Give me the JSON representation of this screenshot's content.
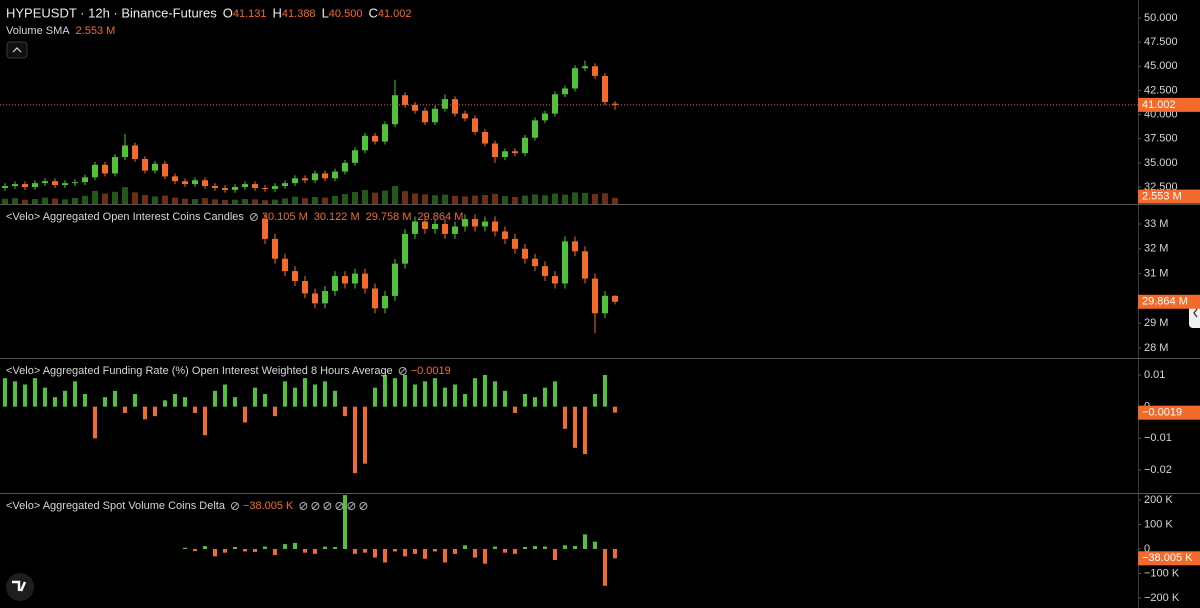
{
  "chart_data": [
    {
      "type": "candlestick",
      "title": "HYPEUSDT · 12h · Binance-Futures",
      "legend_keys": [
        "O",
        "H",
        "L",
        "C"
      ],
      "legend_values": [
        41.131,
        41.388,
        40.5,
        41.002
      ],
      "legend_value_labels": [
        "41.131",
        "41.388",
        "40.500",
        "41.002"
      ],
      "volume_sma_name": "Volume SMA",
      "volume_sma": 2.553,
      "volume_sma_label": "2.553 M",
      "last_value": 41.002,
      "last_value_label": "41.002",
      "ylim": [
        30.74,
        51.86
      ],
      "yticks": [
        {
          "value": 32.5,
          "label": "32.500"
        },
        {
          "value": 35,
          "label": "35.000"
        },
        {
          "value": 37.5,
          "label": "37.500"
        },
        {
          "value": 40,
          "label": "40.000"
        },
        {
          "value": 42.5,
          "label": "42.500"
        },
        {
          "value": 45,
          "label": "45.000"
        },
        {
          "value": 47.5,
          "label": "47.500"
        },
        {
          "value": 50,
          "label": "50.000"
        }
      ],
      "volume_ylim": [
        0,
        70
      ],
      "up_color": "#4fc13a",
      "down_color": "#f26b2d",
      "open": [
        32.4,
        32.6,
        32.8,
        32.5,
        32.9,
        33.1,
        32.7,
        32.9,
        33.0,
        33.5,
        34.8,
        33.9,
        35.6,
        36.8,
        35.4,
        34.2,
        34.9,
        33.6,
        33.1,
        32.8,
        33.2,
        32.6,
        32.4,
        32.2,
        32.5,
        32.8,
        32.4,
        32.3,
        32.6,
        32.9,
        33.4,
        33.2,
        33.9,
        33.4,
        34.1,
        35.0,
        36.3,
        37.8,
        37.2,
        39.0,
        42.0,
        41.0,
        40.4,
        39.2,
        40.6,
        41.6,
        40.1,
        39.6,
        38.2,
        37.0,
        35.6,
        36.2,
        36.0,
        37.6,
        39.4,
        40.1,
        42.1,
        42.7,
        44.8,
        45.0,
        44.0,
        41.131
      ],
      "high": [
        32.9,
        33.1,
        33.1,
        33.2,
        33.4,
        33.4,
        33.2,
        33.3,
        33.8,
        35.1,
        35.1,
        35.9,
        38.0,
        37.1,
        35.7,
        35.2,
        35.2,
        33.9,
        33.4,
        33.5,
        33.5,
        32.9,
        32.7,
        32.8,
        33.1,
        33.1,
        32.7,
        32.9,
        33.2,
        33.7,
        33.7,
        34.2,
        34.2,
        34.4,
        35.3,
        36.6,
        38.1,
        38.1,
        39.3,
        43.6,
        42.3,
        41.3,
        40.7,
        40.9,
        42.1,
        41.9,
        40.4,
        39.9,
        38.5,
        37.3,
        36.5,
        36.5,
        37.9,
        39.7,
        40.4,
        42.4,
        43.0,
        45.1,
        45.6,
        45.3,
        44.3,
        41.388
      ],
      "low": [
        32.1,
        32.3,
        32.2,
        32.2,
        32.6,
        32.4,
        32.4,
        32.6,
        32.7,
        33.2,
        33.6,
        33.6,
        35.3,
        35.1,
        33.9,
        33.9,
        33.3,
        32.8,
        32.5,
        32.5,
        32.3,
        32.1,
        31.9,
        31.9,
        32.2,
        32.1,
        32.0,
        32.0,
        32.3,
        32.6,
        32.9,
        32.9,
        33.1,
        33.1,
        33.8,
        34.7,
        36.0,
        36.9,
        36.9,
        38.7,
        40.7,
        40.1,
        38.9,
        38.9,
        40.3,
        39.8,
        39.3,
        37.9,
        36.7,
        35.0,
        35.3,
        35.7,
        35.7,
        37.3,
        39.1,
        39.8,
        41.8,
        42.4,
        44.5,
        43.7,
        41.0,
        40.5
      ],
      "close": [
        32.6,
        32.8,
        32.5,
        32.9,
        33.1,
        32.7,
        32.9,
        33.0,
        33.5,
        34.8,
        33.9,
        35.6,
        36.8,
        35.4,
        34.2,
        34.9,
        33.6,
        33.1,
        32.8,
        33.2,
        32.6,
        32.4,
        32.2,
        32.5,
        32.8,
        32.4,
        32.3,
        32.6,
        32.9,
        33.4,
        33.2,
        33.9,
        33.4,
        34.1,
        35.0,
        36.3,
        37.8,
        37.2,
        39.0,
        42.0,
        41.0,
        40.4,
        39.2,
        40.6,
        41.6,
        40.1,
        39.6,
        38.2,
        37.0,
        35.6,
        36.2,
        36.0,
        37.6,
        39.4,
        40.1,
        42.1,
        42.7,
        44.8,
        45.0,
        44.0,
        41.3,
        41.002
      ],
      "volume": [
        1.8,
        2.0,
        1.5,
        1.7,
        2.2,
        1.9,
        1.6,
        2.1,
        2.8,
        4.5,
        3.6,
        4.2,
        5.8,
        4.0,
        3.1,
        2.6,
        2.9,
        2.2,
        1.8,
        1.7,
        2.0,
        1.6,
        1.4,
        1.5,
        1.7,
        1.6,
        1.3,
        1.5,
        1.9,
        2.5,
        2.0,
        2.4,
        2.2,
        2.8,
        3.4,
        4.1,
        4.8,
        3.9,
        4.6,
        6.2,
        4.4,
        3.6,
        3.3,
        3.0,
        3.2,
        2.8,
        2.6,
        2.9,
        3.1,
        3.5,
        2.7,
        2.4,
        2.9,
        3.3,
        3.0,
        3.6,
        3.2,
        4.0,
        3.8,
        3.4,
        3.7,
        2.1
      ]
    },
    {
      "type": "candlestick",
      "title": "<Velo> Aggregated Open Interest Coins Candles",
      "legend_values": [
        30.105,
        30.122,
        29.758,
        29.864
      ],
      "legend_value_labels": [
        "30.105 M",
        "30.122 M",
        "29.758 M",
        "29.864 M"
      ],
      "last_value": 29.864,
      "last_value_label": "29.864 M",
      "ylim": [
        27.597,
        33.766
      ],
      "yticks": [
        {
          "value": 28,
          "label": "28 M"
        },
        {
          "value": 29,
          "label": "29 M"
        },
        {
          "value": 31,
          "label": "31 M"
        },
        {
          "value": 32,
          "label": "32 M"
        },
        {
          "value": 33,
          "label": "33 M"
        }
      ],
      "up_color": "#4fc13a",
      "down_color": "#f26b2d",
      "open": [
        null,
        null,
        null,
        null,
        null,
        null,
        null,
        null,
        null,
        null,
        null,
        null,
        null,
        null,
        null,
        null,
        null,
        null,
        null,
        null,
        null,
        null,
        null,
        null,
        null,
        null,
        33.2,
        32.4,
        31.6,
        31.1,
        30.7,
        30.2,
        29.8,
        30.3,
        30.9,
        30.6,
        31.0,
        30.4,
        29.6,
        30.1,
        31.4,
        32.6,
        33.1,
        32.8,
        33.0,
        32.6,
        32.9,
        33.2,
        32.9,
        33.1,
        32.7,
        32.4,
        32.0,
        31.6,
        31.3,
        30.9,
        30.6,
        32.3,
        31.9,
        30.8,
        29.4,
        30.105
      ],
      "high": [
        null,
        null,
        null,
        null,
        null,
        null,
        null,
        null,
        null,
        null,
        null,
        null,
        null,
        null,
        null,
        null,
        null,
        null,
        null,
        null,
        null,
        null,
        null,
        null,
        null,
        null,
        33.4,
        32.6,
        31.8,
        31.3,
        30.9,
        30.4,
        30.5,
        31.1,
        31.1,
        31.2,
        31.2,
        30.6,
        30.3,
        31.6,
        32.8,
        33.3,
        33.3,
        33.2,
        33.2,
        33.1,
        33.4,
        33.4,
        33.3,
        33.3,
        32.9,
        32.6,
        32.2,
        31.8,
        31.5,
        31.1,
        32.5,
        32.5,
        32.1,
        31.0,
        30.3,
        30.122
      ],
      "low": [
        null,
        null,
        null,
        null,
        null,
        null,
        null,
        null,
        null,
        null,
        null,
        null,
        null,
        null,
        null,
        null,
        null,
        null,
        null,
        null,
        null,
        null,
        null,
        null,
        null,
        null,
        32.2,
        31.4,
        30.9,
        30.5,
        30.0,
        29.6,
        29.6,
        30.1,
        30.4,
        30.4,
        30.2,
        29.4,
        29.4,
        29.9,
        31.2,
        32.4,
        32.6,
        32.6,
        32.4,
        32.4,
        32.7,
        32.7,
        32.7,
        32.5,
        32.2,
        31.8,
        31.4,
        31.1,
        30.7,
        30.4,
        30.4,
        31.7,
        30.6,
        28.6,
        29.2,
        29.758
      ],
      "close": [
        null,
        null,
        null,
        null,
        null,
        null,
        null,
        null,
        null,
        null,
        null,
        null,
        null,
        null,
        null,
        null,
        null,
        null,
        null,
        null,
        null,
        null,
        null,
        null,
        null,
        null,
        32.4,
        31.6,
        31.1,
        30.7,
        30.2,
        29.8,
        30.3,
        30.9,
        30.6,
        31.0,
        30.4,
        29.6,
        30.1,
        31.4,
        32.6,
        33.1,
        32.8,
        33.0,
        32.6,
        32.9,
        33.2,
        32.9,
        33.1,
        32.7,
        32.4,
        32.0,
        31.6,
        31.3,
        30.9,
        30.6,
        32.3,
        31.9,
        30.8,
        29.4,
        30.105,
        29.864
      ]
    },
    {
      "type": "bar",
      "title": "<Velo> Aggregated Funding Rate (%) Open Interest Weighted 8 Hours Average",
      "legend_values": [
        -0.0019
      ],
      "legend_value_labels": [
        "−0.0019"
      ],
      "last_value": -0.0019,
      "last_value_label": "−0.0019",
      "ylim": [
        -0.02726,
        0.01505
      ],
      "yticks": [
        0.01,
        0,
        {
          "value": -0.01,
          "label": "−0.01"
        },
        {
          "value": -0.02,
          "label": "−0.02"
        }
      ],
      "up_color": "#4fc13a",
      "down_color": "#f26b2d",
      "values": [
        0.009,
        0.008,
        0.007,
        0.009,
        0.006,
        0.003,
        0.005,
        0.008,
        0.004,
        -0.01,
        0.003,
        0.005,
        -0.002,
        0.004,
        -0.004,
        -0.003,
        0.002,
        0.004,
        0.003,
        -0.002,
        -0.009,
        0.005,
        0.007,
        0.003,
        -0.005,
        0.006,
        0.004,
        -0.003,
        0.008,
        0.006,
        0.009,
        0.007,
        0.008,
        0.005,
        -0.003,
        -0.021,
        -0.018,
        0.006,
        0.01,
        0.009,
        0.01,
        0.007,
        0.008,
        0.009,
        0.006,
        0.007,
        0.004,
        0.009,
        0.01,
        0.008,
        0.005,
        -0.002,
        0.004,
        0.003,
        0.006,
        0.008,
        -0.007,
        -0.013,
        -0.015,
        0.004,
        0.01,
        -0.0019
      ]
    },
    {
      "type": "bar",
      "title": "<Velo> Aggregated Spot Volume Coins Delta",
      "legend_values": [
        -38.005
      ],
      "legend_value_labels": [
        "−38.005 K"
      ],
      "last_value": -38.005,
      "last_value_label": "−38.005 K",
      "ylim": [
        -240.8,
        224.5
      ],
      "yticks": [
        {
          "value": 200,
          "label": "200 K"
        },
        {
          "value": 100,
          "label": "100 K"
        },
        0,
        {
          "value": -100,
          "label": "−100 K"
        },
        {
          "value": -200,
          "label": "−200 K"
        }
      ],
      "up_color": "#4fc13a",
      "down_color": "#f26b2d",
      "values": [
        null,
        null,
        null,
        null,
        null,
        null,
        null,
        null,
        null,
        null,
        null,
        null,
        null,
        null,
        null,
        null,
        null,
        null,
        5,
        -8,
        12,
        -30,
        -15,
        8,
        -10,
        -12,
        10,
        -25,
        20,
        25,
        -15,
        -20,
        10,
        8,
        220,
        -20,
        -15,
        -35,
        -55,
        -10,
        -30,
        -20,
        -40,
        -10,
        -55,
        -20,
        15,
        -35,
        -60,
        10,
        -15,
        -20,
        8,
        12,
        10,
        -45,
        15,
        12,
        60,
        30,
        -150,
        -38.005
      ]
    }
  ]
}
